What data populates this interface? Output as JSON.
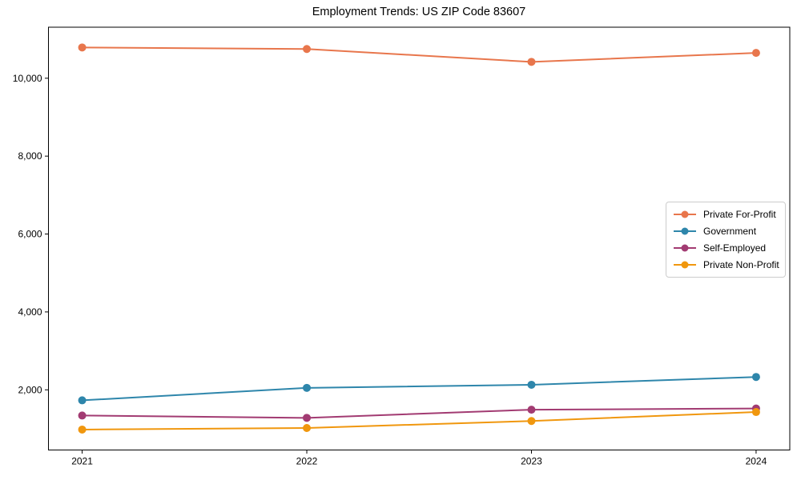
{
  "chart_data": {
    "type": "line",
    "title": "Employment Trends: US ZIP Code 83607",
    "x": [
      2021,
      2022,
      2023,
      2024
    ],
    "categories": [
      "2021",
      "2022",
      "2023",
      "2024"
    ],
    "series": [
      {
        "name": "Private For-Profit",
        "color": "#e8764c",
        "values": [
          10790,
          10750,
          10420,
          10650
        ]
      },
      {
        "name": "Government",
        "color": "#2e86ab",
        "values": [
          1730,
          2050,
          2130,
          2330
        ]
      },
      {
        "name": "Self-Employed",
        "color": "#a23b72",
        "values": [
          1340,
          1280,
          1490,
          1520
        ]
      },
      {
        "name": "Private Non-Profit",
        "color": "#f0970e",
        "values": [
          980,
          1020,
          1200,
          1430
        ]
      }
    ],
    "yticks": [
      2000,
      4000,
      6000,
      8000,
      10000
    ],
    "ytick_labels": [
      "2,000",
      "4,000",
      "6,000",
      "8,000",
      "10,000"
    ],
    "ylim": [
      455,
      11310
    ],
    "xlim": [
      2020.85,
      2024.15
    ],
    "grid": false,
    "legend_position": "center-right",
    "marker": "circle",
    "axis_color": "#000000",
    "text_color": "#000000",
    "background": "#ffffff"
  }
}
